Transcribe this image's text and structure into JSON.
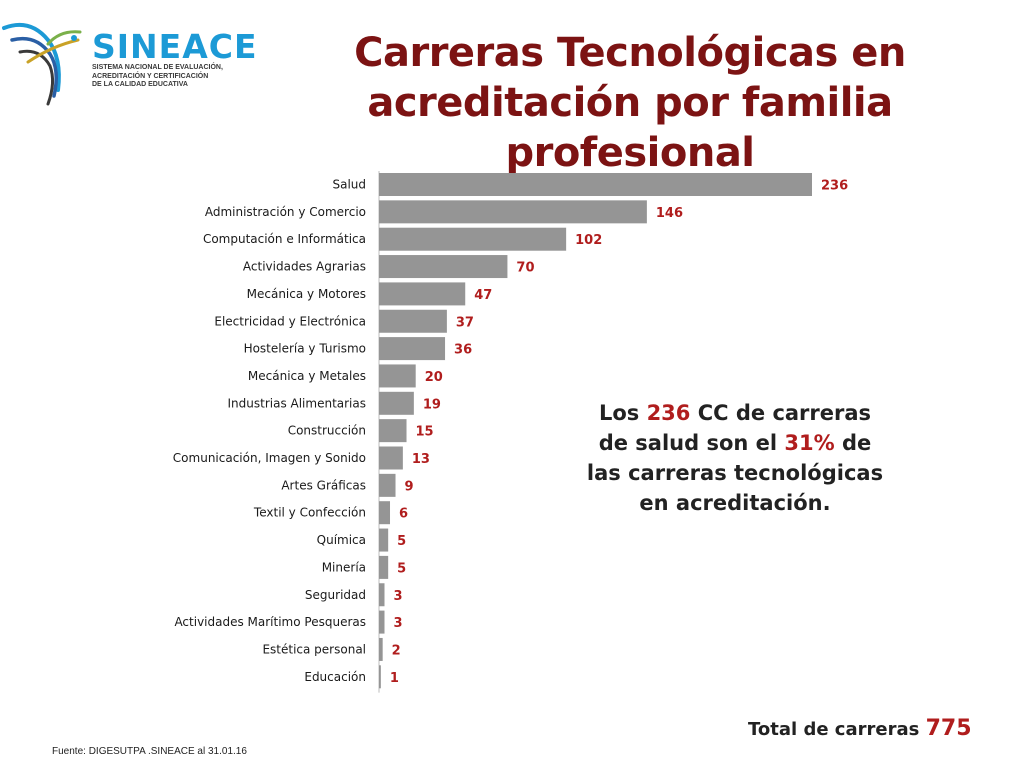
{
  "logo": {
    "name": "SINEACE",
    "subtitle_lines": [
      "SISTEMA NACIONAL DE EVALUACIÓN,",
      "ACREDITACIÓN Y CERTIFICACIÓN",
      "DE LA CALIDAD EDUCATIVA"
    ]
  },
  "title": "Carreras Tecnológicas en acreditación por familia profesional",
  "note": {
    "part1": "Los ",
    "num1": "236",
    "part2": " CC de carreras de salud son el ",
    "num2": "31%",
    "part3": " de las carreras tecnológicas en acreditación."
  },
  "total": {
    "label": "Total de carreras ",
    "value": "775"
  },
  "source": "Fuente: DIGESUTPA .SINEACE al 31.01.16",
  "chart_data": {
    "type": "bar",
    "orientation": "horizontal",
    "categories": [
      "Salud",
      "Administración y Comercio",
      "Computación e Informática",
      "Actividades Agrarias",
      "Mecánica y Motores",
      "Electricidad y Electrónica",
      "Hostelería y Turismo",
      "Mecánica y Metales",
      "Industrias Alimentarias",
      "Construcción",
      "Comunicación, Imagen y Sonido",
      "Artes Gráficas",
      "Textil y Confección",
      "Química",
      "Minería",
      "Seguridad",
      "Actividades Marítimo Pesqueras",
      "Estética personal",
      "Educación"
    ],
    "values": [
      236,
      146,
      102,
      70,
      47,
      37,
      36,
      20,
      19,
      15,
      13,
      9,
      6,
      5,
      5,
      3,
      3,
      2,
      1
    ],
    "bar_color": "#959595",
    "label_color": "#b01d1d",
    "xlim": [
      0,
      236
    ]
  }
}
